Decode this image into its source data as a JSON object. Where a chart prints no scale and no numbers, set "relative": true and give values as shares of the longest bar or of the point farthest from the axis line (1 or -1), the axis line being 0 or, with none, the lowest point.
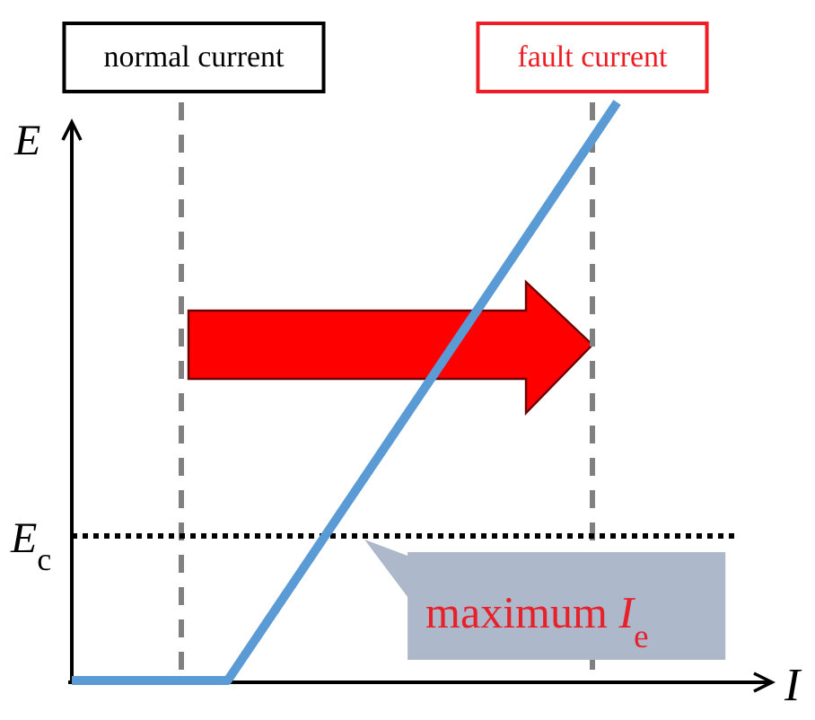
{
  "chart_data": {
    "type": "line",
    "relative": true,
    "xlabel": "I",
    "ylabel": "E",
    "categories": [
      null,
      null,
      null,
      null,
      null,
      null,
      null,
      null,
      null,
      null,
      null,
      null,
      null,
      null,
      null
    ],
    "series": [
      {
        "color": "#5b9bd5",
        "values": [
          0,
          0,
          0,
          0,
          0,
          0.1,
          0.2,
          0.3,
          0.4,
          0.5,
          0.6,
          0.7,
          0.8,
          0.9,
          1
        ]
      }
    ],
    "ref_lines": [
      {
        "axis": "y",
        "value": 0.25,
        "label": "E$_{c}$",
        "color": "#000000",
        "line_style": "dotted"
      }
    ],
    "annotations": [
      "normal current",
      "fault current",
      {
        "text": "maximum I$_{e}$",
        "y": 0.25
      }
    ]
  }
}
